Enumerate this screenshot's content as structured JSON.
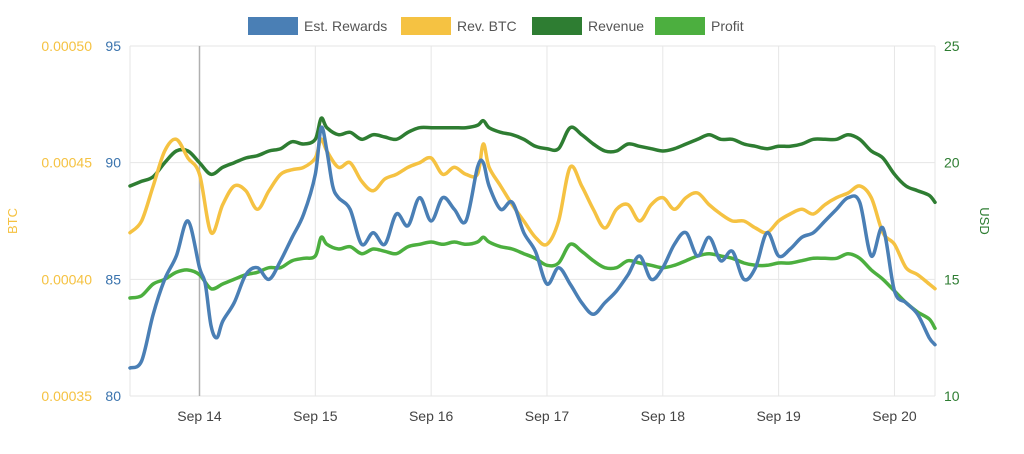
{
  "chart_data": {
    "type": "line",
    "x_labels": [
      "Sep 14",
      "Sep 15",
      "Sep 16",
      "Sep 17",
      "Sep 18",
      "Sep 19",
      "Sep 20"
    ],
    "x_range": [
      13.4,
      20.35
    ],
    "axes": {
      "btc": {
        "label": "BTC",
        "min": 0.00035,
        "max": 0.0005,
        "ticks": [
          "0.00035",
          "0.00040",
          "0.00045",
          "0.00050"
        ],
        "color": "#f5c242"
      },
      "rewards": {
        "min": 80,
        "max": 95,
        "ticks": [
          "80",
          "85",
          "90",
          "95"
        ],
        "color": "#3a73ad"
      },
      "usd": {
        "label": "USD",
        "min": 10,
        "max": 25,
        "ticks": [
          "10",
          "15",
          "20",
          "25"
        ],
        "color": "#2e7d32"
      }
    },
    "crosshair_x": 14.0,
    "legend": {
      "position": "top"
    },
    "series": [
      {
        "name": "Est. Rewards",
        "axis": "rewards",
        "color": "#4a7fb5",
        "x": [
          13.4,
          13.5,
          13.6,
          13.7,
          13.8,
          13.9,
          14.0,
          14.05,
          14.1,
          14.15,
          14.2,
          14.3,
          14.4,
          14.5,
          14.6,
          14.7,
          14.8,
          14.9,
          15.0,
          15.05,
          15.1,
          15.15,
          15.2,
          15.3,
          15.4,
          15.5,
          15.6,
          15.7,
          15.8,
          15.9,
          16.0,
          16.1,
          16.2,
          16.3,
          16.4,
          16.45,
          16.5,
          16.6,
          16.7,
          16.8,
          16.9,
          17.0,
          17.1,
          17.2,
          17.3,
          17.4,
          17.5,
          17.6,
          17.7,
          17.8,
          17.9,
          18.0,
          18.1,
          18.2,
          18.3,
          18.4,
          18.5,
          18.6,
          18.7,
          18.8,
          18.9,
          19.0,
          19.1,
          19.2,
          19.3,
          19.4,
          19.5,
          19.6,
          19.7,
          19.8,
          19.9,
          20.0,
          20.1,
          20.2,
          20.3,
          20.35
        ],
        "y": [
          81.2,
          81.5,
          83.5,
          85.0,
          86.0,
          87.5,
          85.5,
          84.8,
          83.0,
          82.5,
          83.2,
          84.0,
          85.2,
          85.5,
          85.0,
          85.8,
          86.8,
          87.8,
          89.5,
          91.5,
          90.5,
          89.0,
          88.5,
          88.0,
          86.5,
          87.0,
          86.5,
          87.8,
          87.3,
          88.5,
          87.5,
          88.5,
          88.0,
          87.5,
          89.8,
          90.0,
          89.0,
          88.0,
          88.3,
          87.0,
          86.2,
          84.8,
          85.5,
          84.8,
          84.0,
          83.5,
          84.0,
          84.5,
          85.2,
          86.0,
          85.0,
          85.5,
          86.5,
          87.0,
          86.0,
          86.8,
          85.8,
          86.2,
          85.0,
          85.5,
          87.0,
          86.0,
          86.3,
          86.8,
          87.0,
          87.5,
          88.0,
          88.5,
          88.3,
          86.0,
          87.2,
          84.5,
          84.0,
          83.5,
          82.5,
          82.2
        ]
      },
      {
        "name": "Rev. BTC",
        "axis": "btc",
        "color": "#f5c242",
        "x": [
          13.4,
          13.5,
          13.6,
          13.7,
          13.8,
          13.9,
          14.0,
          14.1,
          14.2,
          14.3,
          14.4,
          14.5,
          14.6,
          14.7,
          14.8,
          14.9,
          15.0,
          15.05,
          15.1,
          15.2,
          15.3,
          15.4,
          15.5,
          15.6,
          15.7,
          15.8,
          15.9,
          16.0,
          16.1,
          16.2,
          16.3,
          16.4,
          16.45,
          16.5,
          16.6,
          16.7,
          16.8,
          16.9,
          17.0,
          17.1,
          17.2,
          17.3,
          17.4,
          17.5,
          17.6,
          17.7,
          17.8,
          17.9,
          18.0,
          18.1,
          18.2,
          18.3,
          18.4,
          18.5,
          18.6,
          18.7,
          18.8,
          18.9,
          19.0,
          19.1,
          19.2,
          19.3,
          19.4,
          19.5,
          19.6,
          19.7,
          19.8,
          19.9,
          20.0,
          20.1,
          20.2,
          20.3,
          20.35
        ],
        "y": [
          0.00042,
          0.000425,
          0.00044,
          0.000455,
          0.00046,
          0.000452,
          0.000445,
          0.00042,
          0.000432,
          0.00044,
          0.000438,
          0.00043,
          0.000438,
          0.000445,
          0.000447,
          0.000448,
          0.000452,
          0.00046,
          0.000455,
          0.000448,
          0.00045,
          0.000442,
          0.000438,
          0.000443,
          0.000445,
          0.000448,
          0.00045,
          0.000452,
          0.000445,
          0.000448,
          0.000445,
          0.000445,
          0.000458,
          0.000448,
          0.00044,
          0.000432,
          0.000425,
          0.000418,
          0.000415,
          0.000425,
          0.000448,
          0.00044,
          0.00043,
          0.000422,
          0.00043,
          0.000432,
          0.000425,
          0.000432,
          0.000435,
          0.00043,
          0.000435,
          0.000437,
          0.000432,
          0.000428,
          0.000425,
          0.000425,
          0.000422,
          0.00042,
          0.000425,
          0.000428,
          0.00043,
          0.000428,
          0.000432,
          0.000435,
          0.000437,
          0.00044,
          0.000435,
          0.00042,
          0.000415,
          0.000405,
          0.000402,
          0.000398,
          0.000396
        ]
      },
      {
        "name": "Revenue",
        "axis": "usd",
        "color": "#2e7d32",
        "x": [
          13.4,
          13.5,
          13.6,
          13.7,
          13.8,
          13.9,
          14.0,
          14.1,
          14.2,
          14.3,
          14.4,
          14.5,
          14.6,
          14.7,
          14.8,
          14.9,
          15.0,
          15.05,
          15.1,
          15.2,
          15.3,
          15.4,
          15.5,
          15.6,
          15.7,
          15.8,
          15.9,
          16.0,
          16.1,
          16.2,
          16.3,
          16.4,
          16.45,
          16.5,
          16.6,
          16.7,
          16.8,
          16.9,
          17.0,
          17.1,
          17.2,
          17.3,
          17.4,
          17.5,
          17.6,
          17.7,
          17.8,
          17.9,
          18.0,
          18.1,
          18.2,
          18.3,
          18.4,
          18.5,
          18.6,
          18.7,
          18.8,
          18.9,
          19.0,
          19.1,
          19.2,
          19.3,
          19.4,
          19.5,
          19.6,
          19.7,
          19.8,
          19.9,
          20.0,
          20.1,
          20.2,
          20.3,
          20.35
        ],
        "y": [
          19.0,
          19.2,
          19.4,
          20.0,
          20.5,
          20.5,
          20.0,
          19.5,
          19.8,
          20.0,
          20.2,
          20.3,
          20.5,
          20.6,
          20.9,
          20.8,
          21.0,
          21.9,
          21.5,
          21.2,
          21.3,
          21.0,
          21.2,
          21.1,
          21.0,
          21.3,
          21.5,
          21.5,
          21.5,
          21.5,
          21.5,
          21.6,
          21.8,
          21.5,
          21.3,
          21.2,
          21.0,
          20.7,
          20.6,
          20.6,
          21.5,
          21.2,
          20.8,
          20.5,
          20.5,
          20.8,
          20.7,
          20.6,
          20.5,
          20.6,
          20.8,
          21.0,
          21.2,
          21.0,
          21.0,
          20.8,
          20.7,
          20.6,
          20.7,
          20.7,
          20.8,
          21.0,
          21.0,
          21.0,
          21.2,
          21.0,
          20.5,
          20.2,
          19.5,
          19.0,
          18.8,
          18.6,
          18.3
        ]
      },
      {
        "name": "Profit",
        "axis": "usd",
        "color": "#4caf3f",
        "x": [
          13.4,
          13.5,
          13.6,
          13.7,
          13.8,
          13.9,
          14.0,
          14.1,
          14.2,
          14.3,
          14.4,
          14.5,
          14.6,
          14.7,
          14.8,
          14.9,
          15.0,
          15.05,
          15.1,
          15.2,
          15.3,
          15.4,
          15.5,
          15.6,
          15.7,
          15.8,
          15.9,
          16.0,
          16.1,
          16.2,
          16.3,
          16.4,
          16.45,
          16.5,
          16.6,
          16.7,
          16.8,
          16.9,
          17.0,
          17.1,
          17.2,
          17.3,
          17.4,
          17.5,
          17.6,
          17.7,
          17.8,
          17.9,
          18.0,
          18.1,
          18.2,
          18.3,
          18.4,
          18.5,
          18.6,
          18.7,
          18.8,
          18.9,
          19.0,
          19.1,
          19.2,
          19.3,
          19.4,
          19.5,
          19.6,
          19.7,
          19.8,
          19.9,
          20.0,
          20.1,
          20.2,
          20.3,
          20.35
        ],
        "y": [
          14.2,
          14.3,
          14.8,
          15.0,
          15.3,
          15.4,
          15.2,
          14.6,
          14.8,
          15.0,
          15.2,
          15.3,
          15.5,
          15.5,
          15.8,
          15.9,
          16.0,
          16.8,
          16.5,
          16.3,
          16.4,
          16.1,
          16.3,
          16.2,
          16.1,
          16.4,
          16.5,
          16.6,
          16.5,
          16.6,
          16.5,
          16.6,
          16.8,
          16.6,
          16.4,
          16.3,
          16.1,
          15.9,
          15.6,
          15.7,
          16.5,
          16.2,
          15.8,
          15.5,
          15.5,
          15.8,
          15.7,
          15.6,
          15.5,
          15.6,
          15.8,
          16.0,
          16.1,
          16.0,
          15.9,
          15.7,
          15.6,
          15.6,
          15.7,
          15.7,
          15.8,
          15.9,
          15.9,
          15.9,
          16.1,
          15.9,
          15.4,
          15.0,
          14.5,
          14.0,
          13.6,
          13.3,
          12.9
        ]
      }
    ]
  }
}
